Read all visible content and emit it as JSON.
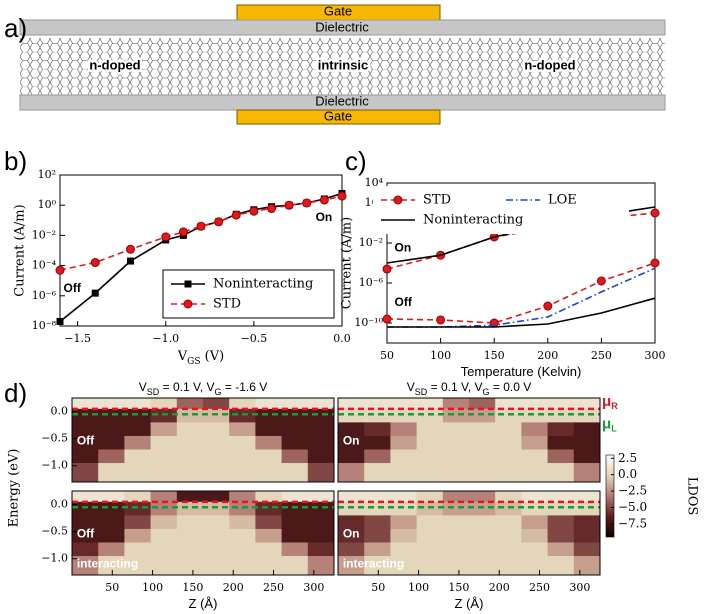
{
  "panel_labels": [
    "a)",
    "b)",
    "c)",
    "d)"
  ],
  "diagram": {
    "gate_top": "Gate",
    "dielectric_top": "Dielectric",
    "regions": [
      "n-doped",
      "intrinsic",
      "n-doped"
    ],
    "dielectric_bottom": "Dielectric",
    "gate_bottom": "Gate"
  },
  "panel_d": {
    "ylabel": "Energy (eV)",
    "mu_labels": [
      {
        "symbol": "μ",
        "sub": "R",
        "color": "#e3171c"
      },
      {
        "symbol": "μ",
        "sub": "L",
        "color": "#1a9a3a"
      }
    ],
    "colorbar": {
      "label": "LDOS",
      "lim": [
        -9.5,
        3.0
      ],
      "colors": [
        "#100000",
        "#5a1f1f",
        "#b27a72",
        "#e2d4b8",
        "#ffffff"
      ],
      "ticks": [
        2.5,
        {
          "value": 0,
          "label": "0.0"
        },
        {
          "value": -2.5,
          "label": "−2.5"
        },
        {
          "value": -5,
          "label": "−5.0"
        },
        {
          "value": -7.5,
          "label": "−7.5"
        }
      ]
    }
  },
  "chart_data": [
    {
      "type": "line",
      "log_y": true,
      "ylabel": "Current (A/m)",
      "xlabel": [
        {
          "text": "V"
        },
        {
          "text": "GS",
          "sub": true
        },
        {
          "text": " (V)"
        }
      ],
      "xlim": [
        -1.6,
        0.0
      ],
      "ylim": [
        1e-08,
        100
      ],
      "xticks": [
        {
          "value": -1.5,
          "label": "−1.5"
        },
        {
          "value": -1.0,
          "label": "−1.0"
        },
        {
          "value": -0.5,
          "label": "−0.5"
        },
        {
          "value": 0,
          "label": "0.0"
        }
      ],
      "yticks": [
        {
          "value": 1e-08,
          "label": "10⁻⁸"
        },
        {
          "value": 1e-06,
          "label": "10⁻⁶"
        },
        {
          "value": 0.0001,
          "label": "10⁻⁴"
        },
        {
          "value": 0.01,
          "label": "10⁻²"
        },
        {
          "value": 1,
          "label": "10⁰"
        },
        {
          "value": 100,
          "label": "10²"
        }
      ],
      "x": [
        -1.6,
        -1.4,
        -1.2,
        -1.0,
        -0.9,
        -0.8,
        -0.7,
        -0.6,
        -0.5,
        -0.4,
        -0.3,
        -0.2,
        -0.1,
        0.0
      ],
      "series": [
        {
          "name": "Noninteracting",
          "color": "#000000",
          "linestyle": "solid",
          "marker": "square",
          "values": [
            2e-08,
            1.5e-06,
            0.0002,
            0.005,
            0.01,
            0.04,
            0.08,
            0.25,
            0.5,
            0.8,
            1.0,
            1.4,
            2.6,
            6
          ]
        },
        {
          "name": "STD",
          "color": "#e3171c",
          "linestyle": "dashed",
          "marker": "circle",
          "values": [
            5e-05,
            0.00016,
            0.0012,
            0.008,
            0.017,
            0.04,
            0.08,
            0.22,
            0.4,
            0.6,
            1.0,
            1.4,
            2.2,
            4
          ]
        }
      ],
      "legend": "lower right",
      "annotations": [
        {
          "text": "Off",
          "x": -1.58,
          "y": 3e-06
        },
        {
          "text": "On",
          "x": -0.15,
          "y": 0.15
        }
      ]
    },
    {
      "type": "line",
      "log_y": true,
      "ylabel": "Current (A/m)",
      "xlabel": [
        {
          "text": "Temperature (Kelvin)"
        }
      ],
      "xlim": [
        50,
        300
      ],
      "ylim": [
        1e-12,
        10000
      ],
      "xticks": [
        50,
        100,
        150,
        200,
        250,
        300
      ],
      "yticks": [
        {
          "value": 1e-10,
          "label": "10⁻¹⁰"
        },
        {
          "value": 1e-06,
          "label": "10⁻⁶"
        },
        {
          "value": 0.01,
          "label": "10⁻²"
        },
        {
          "value": 100,
          "label": "10²"
        },
        {
          "value": 10000,
          "label": "10⁴"
        }
      ],
      "x": [
        50,
        100,
        150,
        200,
        250,
        300
      ],
      "series": [
        {
          "name": "STD",
          "color": "#e3171c",
          "linestyle": "dashed",
          "marker": "circle",
          "values": [
            2.5e-05,
            0.0006,
            0.04,
            0.3,
            3,
            10
          ]
        },
        {
          "color": "#e3171c",
          "linestyle": "dashed",
          "marker": "circle",
          "values": [
            2.5e-10,
            2e-10,
            1e-10,
            5e-09,
            1.6e-06,
            0.0001
          ]
        },
        {
          "name": "LOE",
          "color": "#1f3fd6",
          "linestyle": "dashdot",
          "marker": null,
          "values": [
            4e-11,
            4e-11,
            6e-11,
            4e-10,
            1.3e-07,
            3e-05
          ]
        },
        {
          "name": "Noninteracting",
          "color": "#000000",
          "linestyle": "solid",
          "marker": null,
          "values": [
            0.0001,
            0.0006,
            0.04,
            0.6,
            6,
            40
          ]
        },
        {
          "color": "#000000",
          "linestyle": "solid",
          "marker": null,
          "values": [
            4e-11,
            4e-11,
            4e-11,
            8e-11,
            1e-09,
            3e-08
          ]
        }
      ],
      "legend": "upper center",
      "annotations": [
        {
          "text": "On",
          "x": 57,
          "y": 0.003
        },
        {
          "text": "Off",
          "x": 57,
          "y": 1e-08
        }
      ]
    },
    {
      "type": "heatmap",
      "title": [
        {
          "text": "V"
        },
        {
          "text": "SD",
          "sub": true
        },
        {
          "text": " = 0.1 V, V"
        },
        {
          "text": "G",
          "sub": true
        },
        {
          "text": " = -1.6 V"
        }
      ],
      "xlim": [
        0,
        325
      ],
      "ylim": [
        -1.3,
        0.25
      ],
      "yticks": [
        {
          "value": 0,
          "label": "0.0"
        },
        {
          "value": -0.5,
          "label": "−0.5"
        },
        {
          "value": -1.0,
          "label": "−1.0"
        }
      ],
      "x_bins": [
        0,
        32.5,
        65,
        97.5,
        130,
        162.5,
        195,
        227.5,
        260,
        292.5,
        325
      ],
      "y_bins": [
        0.25,
        0.05,
        -0.2,
        -0.45,
        -0.7,
        -0.95,
        -1.3
      ],
      "z": [
        [
          1,
          1,
          1,
          0,
          -4,
          -5,
          0,
          1,
          1,
          1
        ],
        [
          -7,
          -7,
          -7,
          -6,
          -1,
          -1,
          -6,
          -7,
          -7,
          -7
        ],
        [
          -7,
          -7,
          -7,
          -2,
          0,
          0,
          -2,
          -7,
          -7,
          -7
        ],
        [
          -7,
          -7,
          -3,
          0,
          0,
          0,
          0,
          -3,
          -7,
          -7
        ],
        [
          -7,
          -4,
          0,
          0,
          0,
          0,
          0,
          0,
          -4,
          -7
        ],
        [
          -5,
          0,
          0,
          0,
          0,
          0,
          0,
          0,
          0,
          -5
        ]
      ],
      "hlines": [
        {
          "value": 0.05,
          "color": "#e3171c"
        },
        {
          "value": -0.05,
          "color": "#1a9a3a"
        }
      ],
      "annotations": [
        {
          "text": "Off",
          "x": 6,
          "y": -0.55
        }
      ]
    },
    {
      "type": "heatmap",
      "title": [
        {
          "text": "V"
        },
        {
          "text": "SD",
          "sub": true
        },
        {
          "text": " = 0.1 V, V"
        },
        {
          "text": "G",
          "sub": true
        },
        {
          "text": " = 0.0 V"
        }
      ],
      "xlim": [
        0,
        325
      ],
      "ylim": [
        -1.3,
        0.25
      ],
      "x_bins": [
        0,
        32.5,
        65,
        97.5,
        130,
        162.5,
        195,
        227.5,
        260,
        292.5,
        325
      ],
      "y_bins": [
        0.25,
        0.05,
        -0.2,
        -0.45,
        -0.7,
        -0.95,
        -1.3
      ],
      "z": [
        [
          1,
          1,
          1,
          1,
          -3,
          -4,
          1,
          1,
          1,
          1
        ],
        [
          0,
          0,
          0,
          0,
          -2,
          -2,
          0,
          0,
          0,
          0
        ],
        [
          -7,
          -6,
          -3,
          0,
          0,
          0,
          0,
          -3,
          -6,
          -7
        ],
        [
          -7,
          -7,
          -2,
          0,
          0,
          0,
          0,
          -2,
          -7,
          -7
        ],
        [
          -7,
          -4,
          0,
          0,
          0,
          0,
          0,
          0,
          -4,
          -7
        ],
        [
          -3,
          0,
          0,
          0,
          0,
          0,
          0,
          0,
          0,
          -3
        ]
      ],
      "hlines": [
        {
          "value": 0.05,
          "color": "#e3171c"
        },
        {
          "value": -0.05,
          "color": "#1a9a3a"
        }
      ],
      "annotations": [
        {
          "text": "On",
          "x": 6,
          "y": -0.55
        }
      ]
    },
    {
      "type": "heatmap",
      "xlabel": [
        {
          "text": "Z (Å)"
        }
      ],
      "xlim": [
        0,
        325
      ],
      "ylim": [
        -1.3,
        0.25
      ],
      "xticks": [
        50,
        100,
        150,
        200,
        250,
        300
      ],
      "yticks": [
        {
          "value": 0,
          "label": "0.0"
        },
        {
          "value": -0.5,
          "label": "−0.5"
        },
        {
          "value": -1.0,
          "label": "−1.0"
        }
      ],
      "x_bins": [
        0,
        32.5,
        65,
        97.5,
        130,
        162.5,
        195,
        227.5,
        260,
        292.5,
        325
      ],
      "y_bins": [
        0.25,
        0.05,
        -0.2,
        -0.45,
        -0.7,
        -0.95,
        -1.3
      ],
      "z": [
        [
          1,
          1,
          0,
          -3,
          -7,
          -7,
          -3,
          0,
          1,
          1
        ],
        [
          -7,
          -7,
          -6,
          -3,
          -1,
          -1,
          -3,
          -6,
          -7,
          -7
        ],
        [
          -7,
          -7,
          -5,
          -1,
          0,
          0,
          -1,
          -5,
          -7,
          -7
        ],
        [
          -7,
          -7,
          -2,
          0,
          0,
          0,
          0,
          -2,
          -7,
          -7
        ],
        [
          -6,
          -3,
          0,
          0,
          0,
          0,
          0,
          0,
          -3,
          -6
        ],
        [
          -3,
          0,
          0,
          0,
          0,
          0,
          0,
          0,
          0,
          -3
        ]
      ],
      "hlines": [
        {
          "value": 0.05,
          "color": "#e3171c"
        },
        {
          "value": -0.05,
          "color": "#1a9a3a"
        }
      ],
      "annotations": [
        {
          "text": "Off",
          "x": 6,
          "y": -0.55
        },
        {
          "text": "interacting",
          "x": 6,
          "y": -1.1
        }
      ]
    },
    {
      "type": "heatmap",
      "xlabel": [
        {
          "text": "Z (Å)"
        }
      ],
      "xlim": [
        0,
        325
      ],
      "ylim": [
        -1.3,
        0.25
      ],
      "xticks": [
        50,
        100,
        150,
        200,
        250,
        300
      ],
      "x_bins": [
        0,
        32.5,
        65,
        97.5,
        130,
        162.5,
        195,
        227.5,
        260,
        292.5,
        325
      ],
      "y_bins": [
        0.25,
        0.05,
        -0.2,
        -0.45,
        -0.7,
        -0.95,
        -1.3
      ],
      "z": [
        [
          1,
          1,
          1,
          0,
          -3,
          -3,
          0,
          1,
          1,
          1
        ],
        [
          0,
          0,
          0,
          -1,
          -2,
          -2,
          -1,
          0,
          0,
          0
        ],
        [
          -6,
          -5,
          -2,
          0,
          0,
          0,
          0,
          -2,
          -5,
          -6
        ],
        [
          -6,
          -5,
          -1,
          0,
          0,
          0,
          0,
          -1,
          -5,
          -6
        ],
        [
          -5,
          -2,
          0,
          0,
          0,
          0,
          0,
          0,
          -2,
          -5
        ],
        [
          -2,
          0,
          0,
          0,
          0,
          0,
          0,
          0,
          0,
          -2
        ]
      ],
      "hlines": [
        {
          "value": 0.05,
          "color": "#e3171c"
        },
        {
          "value": -0.05,
          "color": "#1a9a3a"
        }
      ],
      "annotations": [
        {
          "text": "On",
          "x": 6,
          "y": -0.55
        },
        {
          "text": "interacting",
          "x": 6,
          "y": -1.1
        }
      ]
    }
  ]
}
